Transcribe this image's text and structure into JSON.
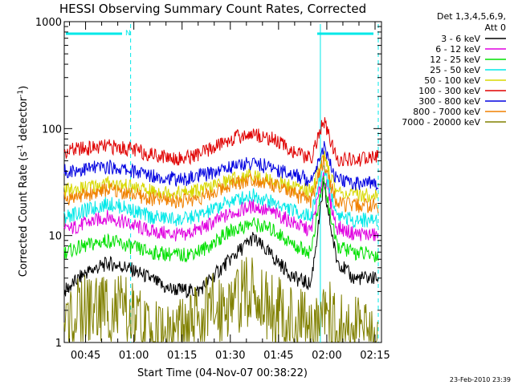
{
  "chart_data": {
    "type": "line",
    "title": "HESSI Observing Summary Count Rates, Corrected",
    "xlabel": "Start Time (04-Nov-07 00:38:22)",
    "ylabel_main": "Corrected Count Rate (s",
    "ylabel_sup1": "-1",
    "ylabel_mid": " detector",
    "ylabel_sup2": "-1",
    "ylabel_end": ")",
    "xlim": [
      "00:38:22",
      "02:17:00"
    ],
    "ylim": [
      1,
      1000
    ],
    "yscale": "log",
    "x_ticks": [
      "00:45",
      "01:00",
      "01:15",
      "01:30",
      "01:45",
      "02:00",
      "02:15"
    ],
    "y_ticks": [
      "1",
      "10",
      "100",
      "1000"
    ],
    "legend_header": [
      "Det 1,3,4,5,6,9,",
      "Att 0"
    ],
    "legend_position": "right",
    "annotations": {
      "night_flag_label": "N",
      "night_intervals": [
        [
          "00:38:22",
          "00:59:00"
        ],
        [
          "01:58:00",
          "02:16:00"
        ]
      ],
      "vertical_markers": [
        "00:59:00",
        "01:58:00",
        "02:16:00"
      ]
    },
    "series": [
      {
        "name": "3 - 6 keV",
        "color": "#000000",
        "points": [
          [
            "00:38:22",
            3
          ],
          [
            "00:45",
            4.5
          ],
          [
            "00:52",
            5.5
          ],
          [
            "00:58",
            5
          ],
          [
            "01:05",
            4
          ],
          [
            "01:10",
            3.2
          ],
          [
            "01:20",
            3
          ],
          [
            "01:30",
            6
          ],
          [
            "01:37",
            9.5
          ],
          [
            "01:44",
            6
          ],
          [
            "01:50",
            4
          ],
          [
            "01:55",
            3.5
          ],
          [
            "01:59",
            29
          ],
          [
            "02:03",
            6
          ],
          [
            "02:08",
            4
          ],
          [
            "02:16",
            4
          ]
        ]
      },
      {
        "name": "6 - 12 keV",
        "color": "#e000e0",
        "points": [
          [
            "00:38:22",
            11
          ],
          [
            "00:45",
            13
          ],
          [
            "00:52",
            15
          ],
          [
            "00:58",
            13
          ],
          [
            "01:05",
            11
          ],
          [
            "01:15",
            10
          ],
          [
            "01:22",
            12
          ],
          [
            "01:30",
            16
          ],
          [
            "01:37",
            19
          ],
          [
            "01:44",
            16
          ],
          [
            "01:50",
            13
          ],
          [
            "01:55",
            11
          ],
          [
            "01:59",
            38
          ],
          [
            "02:03",
            12
          ],
          [
            "02:08",
            10.5
          ],
          [
            "02:16",
            10
          ]
        ]
      },
      {
        "name": "12 - 25 keV",
        "color": "#00e000",
        "points": [
          [
            "00:38:22",
            7
          ],
          [
            "00:45",
            8
          ],
          [
            "00:52",
            9
          ],
          [
            "00:58",
            8
          ],
          [
            "01:05",
            7
          ],
          [
            "01:15",
            6.5
          ],
          [
            "01:22",
            7.5
          ],
          [
            "01:30",
            11
          ],
          [
            "01:37",
            13
          ],
          [
            "01:44",
            11
          ],
          [
            "01:50",
            8
          ],
          [
            "01:55",
            7
          ],
          [
            "01:59",
            34
          ],
          [
            "02:03",
            8
          ],
          [
            "02:08",
            7
          ],
          [
            "02:16",
            6.5
          ]
        ]
      },
      {
        "name": "25 - 50 keV",
        "color": "#00e8e8",
        "points": [
          [
            "00:38:22",
            15
          ],
          [
            "00:45",
            17
          ],
          [
            "00:52",
            20
          ],
          [
            "00:58",
            18
          ],
          [
            "01:05",
            15
          ],
          [
            "01:15",
            14
          ],
          [
            "01:22",
            16
          ],
          [
            "01:30",
            21
          ],
          [
            "01:37",
            24
          ],
          [
            "01:44",
            20
          ],
          [
            "01:50",
            17
          ],
          [
            "01:55",
            15
          ],
          [
            "01:59",
            45
          ],
          [
            "02:03",
            16
          ],
          [
            "02:08",
            14
          ],
          [
            "02:16",
            14
          ]
        ]
      },
      {
        "name": "50 - 100 keV",
        "color": "#d8d800",
        "points": [
          [
            "00:38:22",
            26
          ],
          [
            "00:45",
            28
          ],
          [
            "00:52",
            31
          ],
          [
            "00:58",
            29
          ],
          [
            "01:05",
            26
          ],
          [
            "01:15",
            25
          ],
          [
            "01:22",
            27
          ],
          [
            "01:30",
            33
          ],
          [
            "01:37",
            37
          ],
          [
            "01:44",
            32
          ],
          [
            "01:50",
            28
          ],
          [
            "01:55",
            26
          ],
          [
            "01:59",
            55
          ],
          [
            "02:03",
            26
          ],
          [
            "02:08",
            24
          ],
          [
            "02:16",
            24
          ]
        ]
      },
      {
        "name": "100 - 300 keV",
        "color": "#e00000",
        "points": [
          [
            "00:38:22",
            62
          ],
          [
            "00:45",
            65
          ],
          [
            "00:52",
            68
          ],
          [
            "00:58",
            65
          ],
          [
            "01:05",
            58
          ],
          [
            "01:15",
            52
          ],
          [
            "01:22",
            60
          ],
          [
            "01:30",
            80
          ],
          [
            "01:37",
            90
          ],
          [
            "01:44",
            78
          ],
          [
            "01:50",
            60
          ],
          [
            "01:55",
            52
          ],
          [
            "01:59",
            118
          ],
          [
            "02:03",
            52
          ],
          [
            "02:08",
            50
          ],
          [
            "02:16",
            55
          ]
        ]
      },
      {
        "name": "300 - 800 keV",
        "color": "#0000e0",
        "points": [
          [
            "00:38:22",
            40
          ],
          [
            "00:45",
            42
          ],
          [
            "00:52",
            44
          ],
          [
            "00:58",
            41
          ],
          [
            "01:05",
            37
          ],
          [
            "01:15",
            33
          ],
          [
            "01:22",
            37
          ],
          [
            "01:30",
            44
          ],
          [
            "01:37",
            48
          ],
          [
            "01:44",
            42
          ],
          [
            "01:50",
            37
          ],
          [
            "01:55",
            33
          ],
          [
            "01:59",
            68
          ],
          [
            "02:03",
            33
          ],
          [
            "02:08",
            31
          ],
          [
            "02:16",
            31
          ]
        ]
      },
      {
        "name": "800 - 7000 keV",
        "color": "#f08000",
        "points": [
          [
            "00:38:22",
            22
          ],
          [
            "00:45",
            24
          ],
          [
            "00:52",
            27
          ],
          [
            "00:58",
            25
          ],
          [
            "01:05",
            22
          ],
          [
            "01:15",
            21
          ],
          [
            "01:22",
            23
          ],
          [
            "01:30",
            30
          ],
          [
            "01:37",
            34
          ],
          [
            "01:44",
            29
          ],
          [
            "01:50",
            24
          ],
          [
            "01:55",
            21
          ],
          [
            "01:59",
            50
          ],
          [
            "02:03",
            20
          ],
          [
            "02:08",
            19
          ],
          [
            "02:16",
            19
          ]
        ]
      },
      {
        "name": "7000 - 20000 keV",
        "color": "#808000",
        "points": [
          [
            "00:38:22",
            1.5
          ],
          [
            "00:45",
            2
          ],
          [
            "00:52",
            2.2
          ],
          [
            "00:58",
            1.8
          ],
          [
            "01:05",
            1.2
          ],
          [
            "01:15",
            1.2
          ],
          [
            "01:22",
            1.8
          ],
          [
            "01:30",
            2.5
          ],
          [
            "01:37",
            3
          ],
          [
            "01:44",
            2
          ],
          [
            "01:50",
            1.5
          ],
          [
            "01:55",
            1.3
          ],
          [
            "01:59",
            2.5
          ],
          [
            "02:03",
            1.3
          ],
          [
            "02:08",
            1.2
          ],
          [
            "02:16",
            1.2
          ]
        ]
      }
    ]
  },
  "footer": {
    "timestamp": "23-Feb-2010 23:39"
  }
}
